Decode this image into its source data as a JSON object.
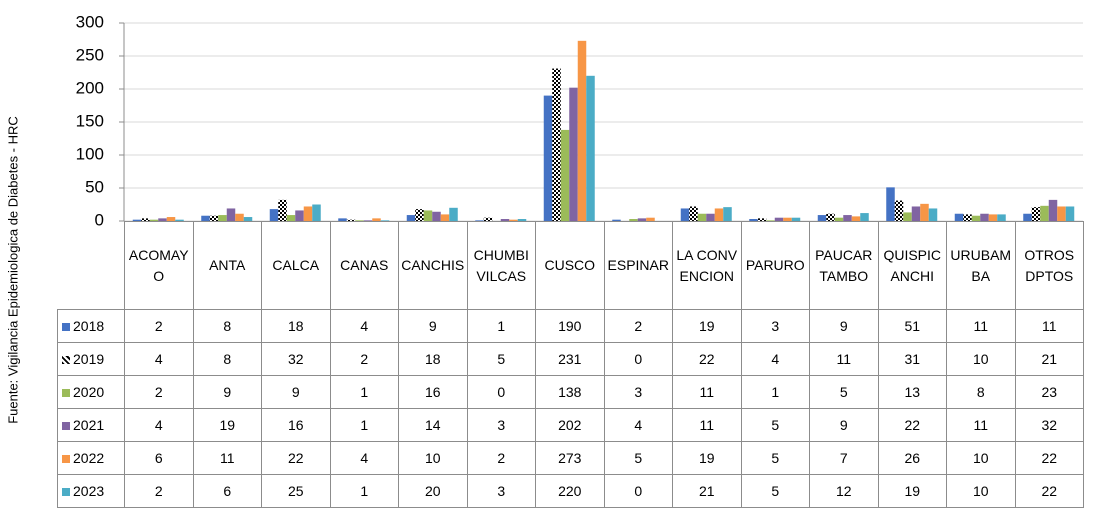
{
  "chart_data": {
    "type": "bar",
    "y_label": "Fuente: Vigilancia Epidemiologica de Diabetes - HRC",
    "categories": [
      "ACOMAYO",
      "ANTA",
      "CALCA",
      "CANAS",
      "CANCHIS",
      "CHUMBIVILCAS",
      "CUSCO",
      "ESPINAR",
      "LA CONVENCION",
      "PARURO",
      "PAUCARTAMBO",
      "QUISPICANCHI",
      "URUBAMBA",
      "OTROS DPTOS"
    ],
    "series": [
      {
        "name": "2018",
        "color": "#4472c4",
        "values": [
          2,
          8,
          18,
          4,
          9,
          1,
          190,
          2,
          19,
          3,
          9,
          51,
          11,
          11
        ]
      },
      {
        "name": "2019",
        "color": "#000000",
        "pattern": true,
        "values": [
          4,
          8,
          32,
          2,
          18,
          5,
          231,
          0,
          22,
          4,
          11,
          31,
          10,
          21
        ]
      },
      {
        "name": "2020",
        "color": "#9bbb59",
        "values": [
          2,
          9,
          9,
          1,
          16,
          0,
          138,
          3,
          11,
          1,
          5,
          13,
          8,
          23
        ]
      },
      {
        "name": "2021",
        "color": "#8064a2",
        "values": [
          4,
          19,
          16,
          1,
          14,
          3,
          202,
          4,
          11,
          5,
          9,
          22,
          11,
          32
        ]
      },
      {
        "name": "2022",
        "color": "#f79646",
        "values": [
          6,
          11,
          22,
          4,
          10,
          2,
          273,
          5,
          19,
          5,
          7,
          26,
          10,
          22
        ]
      },
      {
        "name": "2023",
        "color": "#4bacc6",
        "values": [
          2,
          6,
          25,
          1,
          20,
          3,
          220,
          0,
          21,
          5,
          12,
          19,
          10,
          22
        ]
      }
    ],
    "ylim": [
      0,
      300
    ],
    "yticks": [
      0,
      50,
      100,
      150,
      200,
      250,
      300
    ],
    "grid": true
  }
}
